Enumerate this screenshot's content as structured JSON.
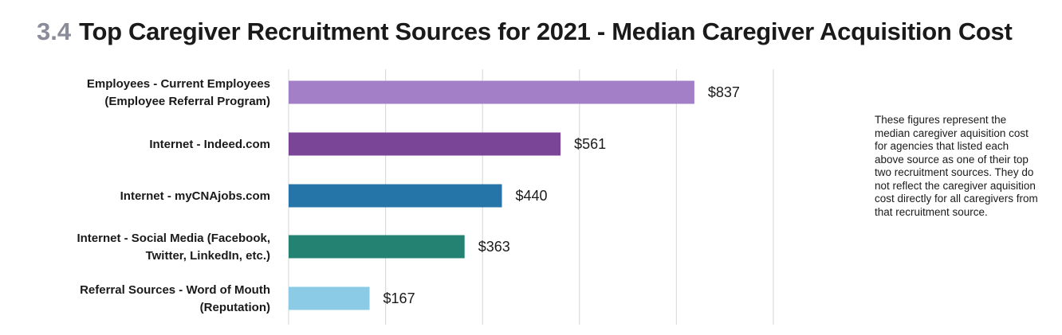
{
  "heading": {
    "number": "3.4",
    "title": "Top Caregiver Recruitment Sources for 2021 - Median Caregiver Acquisition Cost"
  },
  "note": "These figures represent the median caregiver aquisition cost for agencies that listed each above source as one of their top two recruitment sources. They do not reflect the caregiver aquisition cost directly for all caregivers from that recruitment source.",
  "colors": {
    "heading_number": "#8a8c99",
    "gridline": "#dcdcdc"
  },
  "chart_data": {
    "type": "bar",
    "orientation": "horizontal",
    "title": "Top Caregiver Recruitment Sources for 2021 - Median Caregiver Acquisition Cost",
    "grid": true,
    "xlim": [
      0,
      1000
    ],
    "categories": [
      [
        "Employees - Current Employees",
        "(Employee Referral Program)"
      ],
      [
        "Internet - Indeed.com"
      ],
      [
        "Internet - myCNAjobs.com"
      ],
      [
        "Internet - Social Media (Facebook,",
        "Twitter, LinkedIn, etc.)"
      ],
      [
        "Referral Sources - Word of Mouth",
        "(Reputation)"
      ]
    ],
    "values": [
      837,
      561,
      440,
      363,
      167
    ],
    "value_labels": [
      "$837",
      "$561",
      "$440",
      "$363",
      "$167"
    ],
    "bar_colors": [
      "#a37fc7",
      "#7b4597",
      "#2575a8",
      "#238271",
      "#8ccbe5"
    ]
  }
}
